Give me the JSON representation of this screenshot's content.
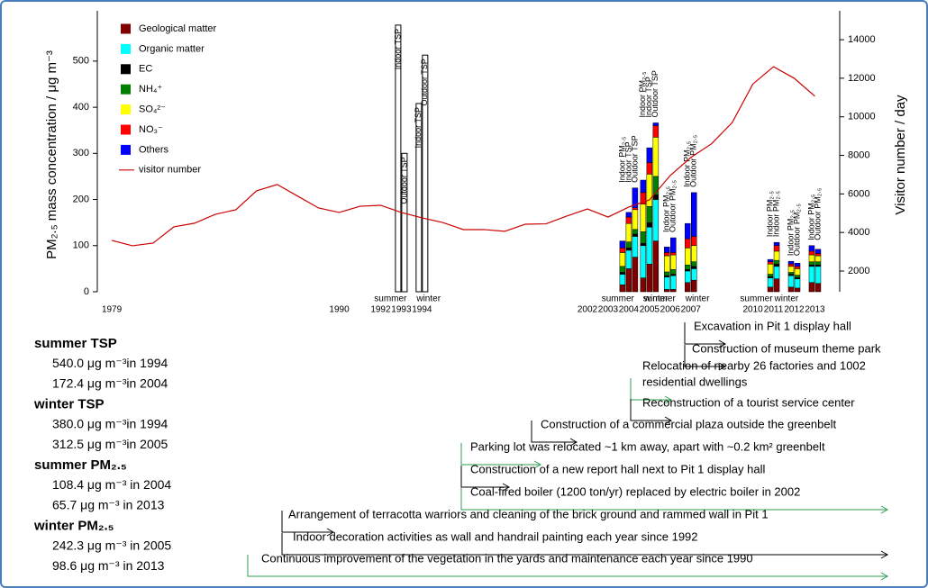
{
  "chart_data": {
    "type": "bar",
    "y_label": "PM₂.₅ mass concentration / μg m⁻³",
    "y2_label": "Visitor number / day",
    "ylim": [
      0,
      609
    ],
    "yticks": [
      0,
      100,
      200,
      300,
      400,
      500
    ],
    "y2lim": [
      925,
      15500
    ],
    "y2ticks": [
      2000,
      4000,
      6000,
      8000,
      10000,
      12000,
      14000
    ],
    "xlim": [
      1978.3,
      2014.2
    ],
    "xticks": [
      1979,
      1990,
      1992,
      1993,
      1994,
      2002,
      2003,
      2004,
      2005,
      2006,
      2007,
      2010,
      2011,
      2012,
      2013
    ],
    "bars": [
      {
        "x": 1993,
        "label": "Indoor TSP",
        "value": 578
      },
      {
        "x": 1993,
        "label": "Outdoor TSP",
        "value": 300
      },
      {
        "x": 1994,
        "label": "Indoor TSP",
        "value": 408
      },
      {
        "x": 1994,
        "label": "Outdoor TSP",
        "value": 513
      },
      {
        "x": 2004,
        "label": "Indoor PM₂.₅"
      },
      {
        "x": 2004,
        "label": "Indoor TSP"
      },
      {
        "x": 2004,
        "label": "Outdoor TSP"
      },
      {
        "x": 2005,
        "label": "Indoor PM₂.₅"
      },
      {
        "x": 2005,
        "label": "Indoor TSP"
      },
      {
        "x": 2005,
        "label": "Outdoor TSP"
      },
      {
        "x": 2006,
        "label": "Indoor PM₂.₅"
      },
      {
        "x": 2006,
        "label": "Outdoor PM₂.₅"
      },
      {
        "x": 2007,
        "label": "Indoor PM₂.₅"
      },
      {
        "x": 2007,
        "label": "Outdoor PM₂.₅"
      },
      {
        "x": 2011,
        "label": "Indoor PM₂.₅"
      },
      {
        "x": 2011,
        "label": "Indoor PM₂.₅"
      },
      {
        "x": 2012,
        "label": "Indoor PM₂.₅"
      },
      {
        "x": 2012,
        "label": "Outdoor PM₂.₅"
      },
      {
        "x": 2013,
        "label": "Indoor PM₂.₅"
      },
      {
        "x": 2013,
        "label": "Outdoor PM₂.₅"
      }
    ],
    "seasons": [
      {
        "label": "summer",
        "x": 1993
      },
      {
        "label": "winter",
        "x": 1994
      },
      {
        "label": "summer",
        "x": 2004
      },
      {
        "label": "winter",
        "x": 2005
      },
      {
        "label": "summer",
        "x": 2006
      },
      {
        "label": "winter",
        "x": 2007
      },
      {
        "label": "summer",
        "x": 2011
      },
      {
        "label": "winter",
        "x": 2011
      }
    ],
    "series": [
      {
        "name": "Geological matter",
        "color": "#800000",
        "values": [
          15,
          50,
          75,
          30,
          60,
          110,
          5,
          5,
          20,
          25,
          10,
          28,
          10,
          8,
          20,
          18
        ]
      },
      {
        "name": "Organic matter",
        "color": "#00ffff",
        "values": [
          23,
          40,
          45,
          70,
          80,
          90,
          27,
          30,
          25,
          25,
          20,
          27,
          25,
          20,
          35,
          37
        ]
      },
      {
        "name": "EC",
        "color": "#000000",
        "values": [
          4,
          5,
          5,
          5,
          10,
          10,
          3,
          3,
          3,
          5,
          3,
          5,
          3,
          3,
          3,
          3
        ]
      },
      {
        "name": "NH₄⁺",
        "color": "#008000",
        "values": [
          13,
          13,
          10,
          25,
          35,
          40,
          8,
          10,
          10,
          10,
          5,
          8,
          4,
          5,
          7,
          7
        ]
      },
      {
        "name": "SO₄²⁻",
        "color": "#ffff00",
        "values": [
          30,
          40,
          43,
          60,
          70,
          85,
          35,
          32,
          37,
          35,
          22,
          20,
          13,
          14,
          15,
          13
        ]
      },
      {
        "name": "NO₃⁻",
        "color": "#ff0000",
        "values": [
          10,
          14,
          4,
          25,
          25,
          25,
          7,
          5,
          20,
          20,
          5,
          12,
          5,
          5,
          8,
          5
        ]
      },
      {
        "name": "Others",
        "color": "#0000ff",
        "values": [
          15,
          10,
          43,
          27,
          32,
          6,
          12,
          32,
          33,
          95,
          5,
          7,
          6,
          7,
          12,
          9
        ]
      },
      {
        "name": "visitor number",
        "color": "#cc0000",
        "type": "line",
        "axis": "y2",
        "x": [
          1979,
          1980,
          1981,
          1982,
          1983,
          1984,
          1985,
          1986,
          1987,
          1988,
          1989,
          1990,
          1991,
          1992,
          1993,
          1994,
          1995,
          1996,
          1997,
          1998,
          1999,
          2000,
          2001,
          2002,
          2003,
          2004,
          2005,
          2006,
          2007,
          2008,
          2009,
          2010,
          2011,
          2012,
          2013
        ],
        "values": [
          3590,
          3310,
          3450,
          4290,
          4480,
          4940,
          5180,
          6160,
          6490,
          5880,
          5270,
          5040,
          5360,
          5410,
          5040,
          4760,
          4520,
          4150,
          4150,
          4060,
          4430,
          4450,
          4850,
          5220,
          4800,
          5320,
          5690,
          6950,
          7890,
          8600,
          9700,
          11700,
          12600,
          12000,
          11070
        ]
      }
    ],
    "summary": [
      {
        "heading": "summer TSP",
        "lines": [
          "540.0 μg m⁻³in 1994",
          "172.4 μg m⁻³in 2004"
        ]
      },
      {
        "heading": "winter TSP",
        "lines": [
          "380.0 μg m⁻³in 1994",
          "312.5 μg m⁻³in 2005"
        ]
      },
      {
        "heading": "summer PM₂.₅",
        "lines": [
          "108.4 μg m⁻³ in 2004",
          "65.7 μg m⁻³ in 2013"
        ]
      },
      {
        "heading": "winter PM₂.₅",
        "lines": [
          "242.3 μg m⁻³ in 2005",
          "98.6 μg m⁻³ in 2013"
        ]
      }
    ],
    "events": [
      {
        "lines": [
          "Excavation in Pit 1 display hall"
        ],
        "color": "#000000"
      },
      {
        "lines": [
          "Construction of museum theme park"
        ],
        "color": "#000000"
      },
      {
        "lines": [
          "Relocation of nearby 26 factories and 1002",
          "residential dwellings"
        ],
        "color": "#2e9e4f"
      },
      {
        "lines": [
          "Reconstruction of a tourist service center"
        ],
        "color": "#000000"
      },
      {
        "lines": [
          "Construction of a commercial plaza outside the greenbelt"
        ],
        "color": "#000000"
      },
      {
        "lines": [
          "Parking lot was relocated ~1 km away, apart with ~0.2 km² greenbelt"
        ],
        "color": "#2e9e4f"
      },
      {
        "lines": [
          "Construction of a new report hall next to Pit 1 display hall"
        ],
        "color": "#000000"
      },
      {
        "lines": [
          "Coal-fired boiler (1200 ton/yr) replaced by electric boiler in 2002"
        ],
        "color": "#2e9e4f"
      },
      {
        "lines": [
          "Arrangement of terracotta warriors and cleaning of the brick ground and  rammed wall in Pit 1"
        ],
        "color": "#000000"
      },
      {
        "lines": [
          "Indoor decoration activities as wall and handrail painting each year since 1992"
        ],
        "color": "#000000"
      },
      {
        "lines": [
          "Continuous improvement of the vegetation in the yards and maintenance each year since 1990"
        ],
        "color": "#2e9e4f"
      }
    ]
  }
}
